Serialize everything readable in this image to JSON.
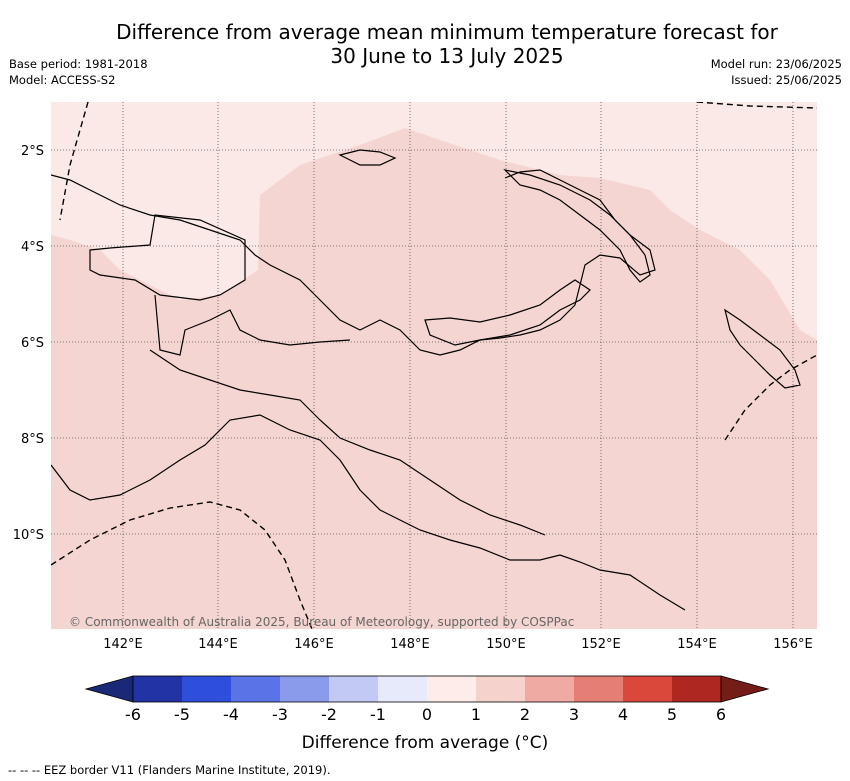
{
  "title_line1": "Difference from average mean minimum temperature forecast for",
  "title_line2": "30 June to 13 July 2025",
  "base_period": "Base period: 1981-2018",
  "model": "Model: ACCESS-S2",
  "model_run": "Model run: 23/06/2025",
  "issued": "Issued: 25/06/2025",
  "copyright": "© Commonwealth of Australia 2025, Bureau of Meteorology, supported by COSPPac",
  "eez_note": "-- -- -- EEZ border V11 (Flanders Marine Institute, 2019).",
  "map": {
    "lon_range": [
      140.5,
      156.5
    ],
    "lat_range": [
      -12.0,
      -1.0
    ],
    "lon_ticks": [
      "142°E",
      "144°E",
      "146°E",
      "148°E",
      "150°E",
      "152°E",
      "154°E",
      "156°E"
    ],
    "lat_ticks": [
      "2°S",
      "4°S",
      "6°S",
      "8°S",
      "10°S"
    ],
    "gridlines": true,
    "colors": {
      "anomaly_0_1": "#fbe9e7",
      "anomaly_1_2": "#f5d5d1",
      "coastline": "#000000"
    }
  },
  "colorbar": {
    "ticks": [
      "-6",
      "-5",
      "-4",
      "-3",
      "-2",
      "-1",
      "0",
      "1",
      "2",
      "3",
      "4",
      "5",
      "6"
    ],
    "colors": [
      "#2233a6",
      "#2e4fdc",
      "#5a73e6",
      "#8a9bec",
      "#c2c9f4",
      "#e6eafa",
      "#fdecea",
      "#f5d2cc",
      "#efaba3",
      "#e57f74",
      "#da483b",
      "#ae2721"
    ],
    "under_color": "#1a2878",
    "over_color": "#731c18",
    "label": "Difference from average (°C)"
  }
}
